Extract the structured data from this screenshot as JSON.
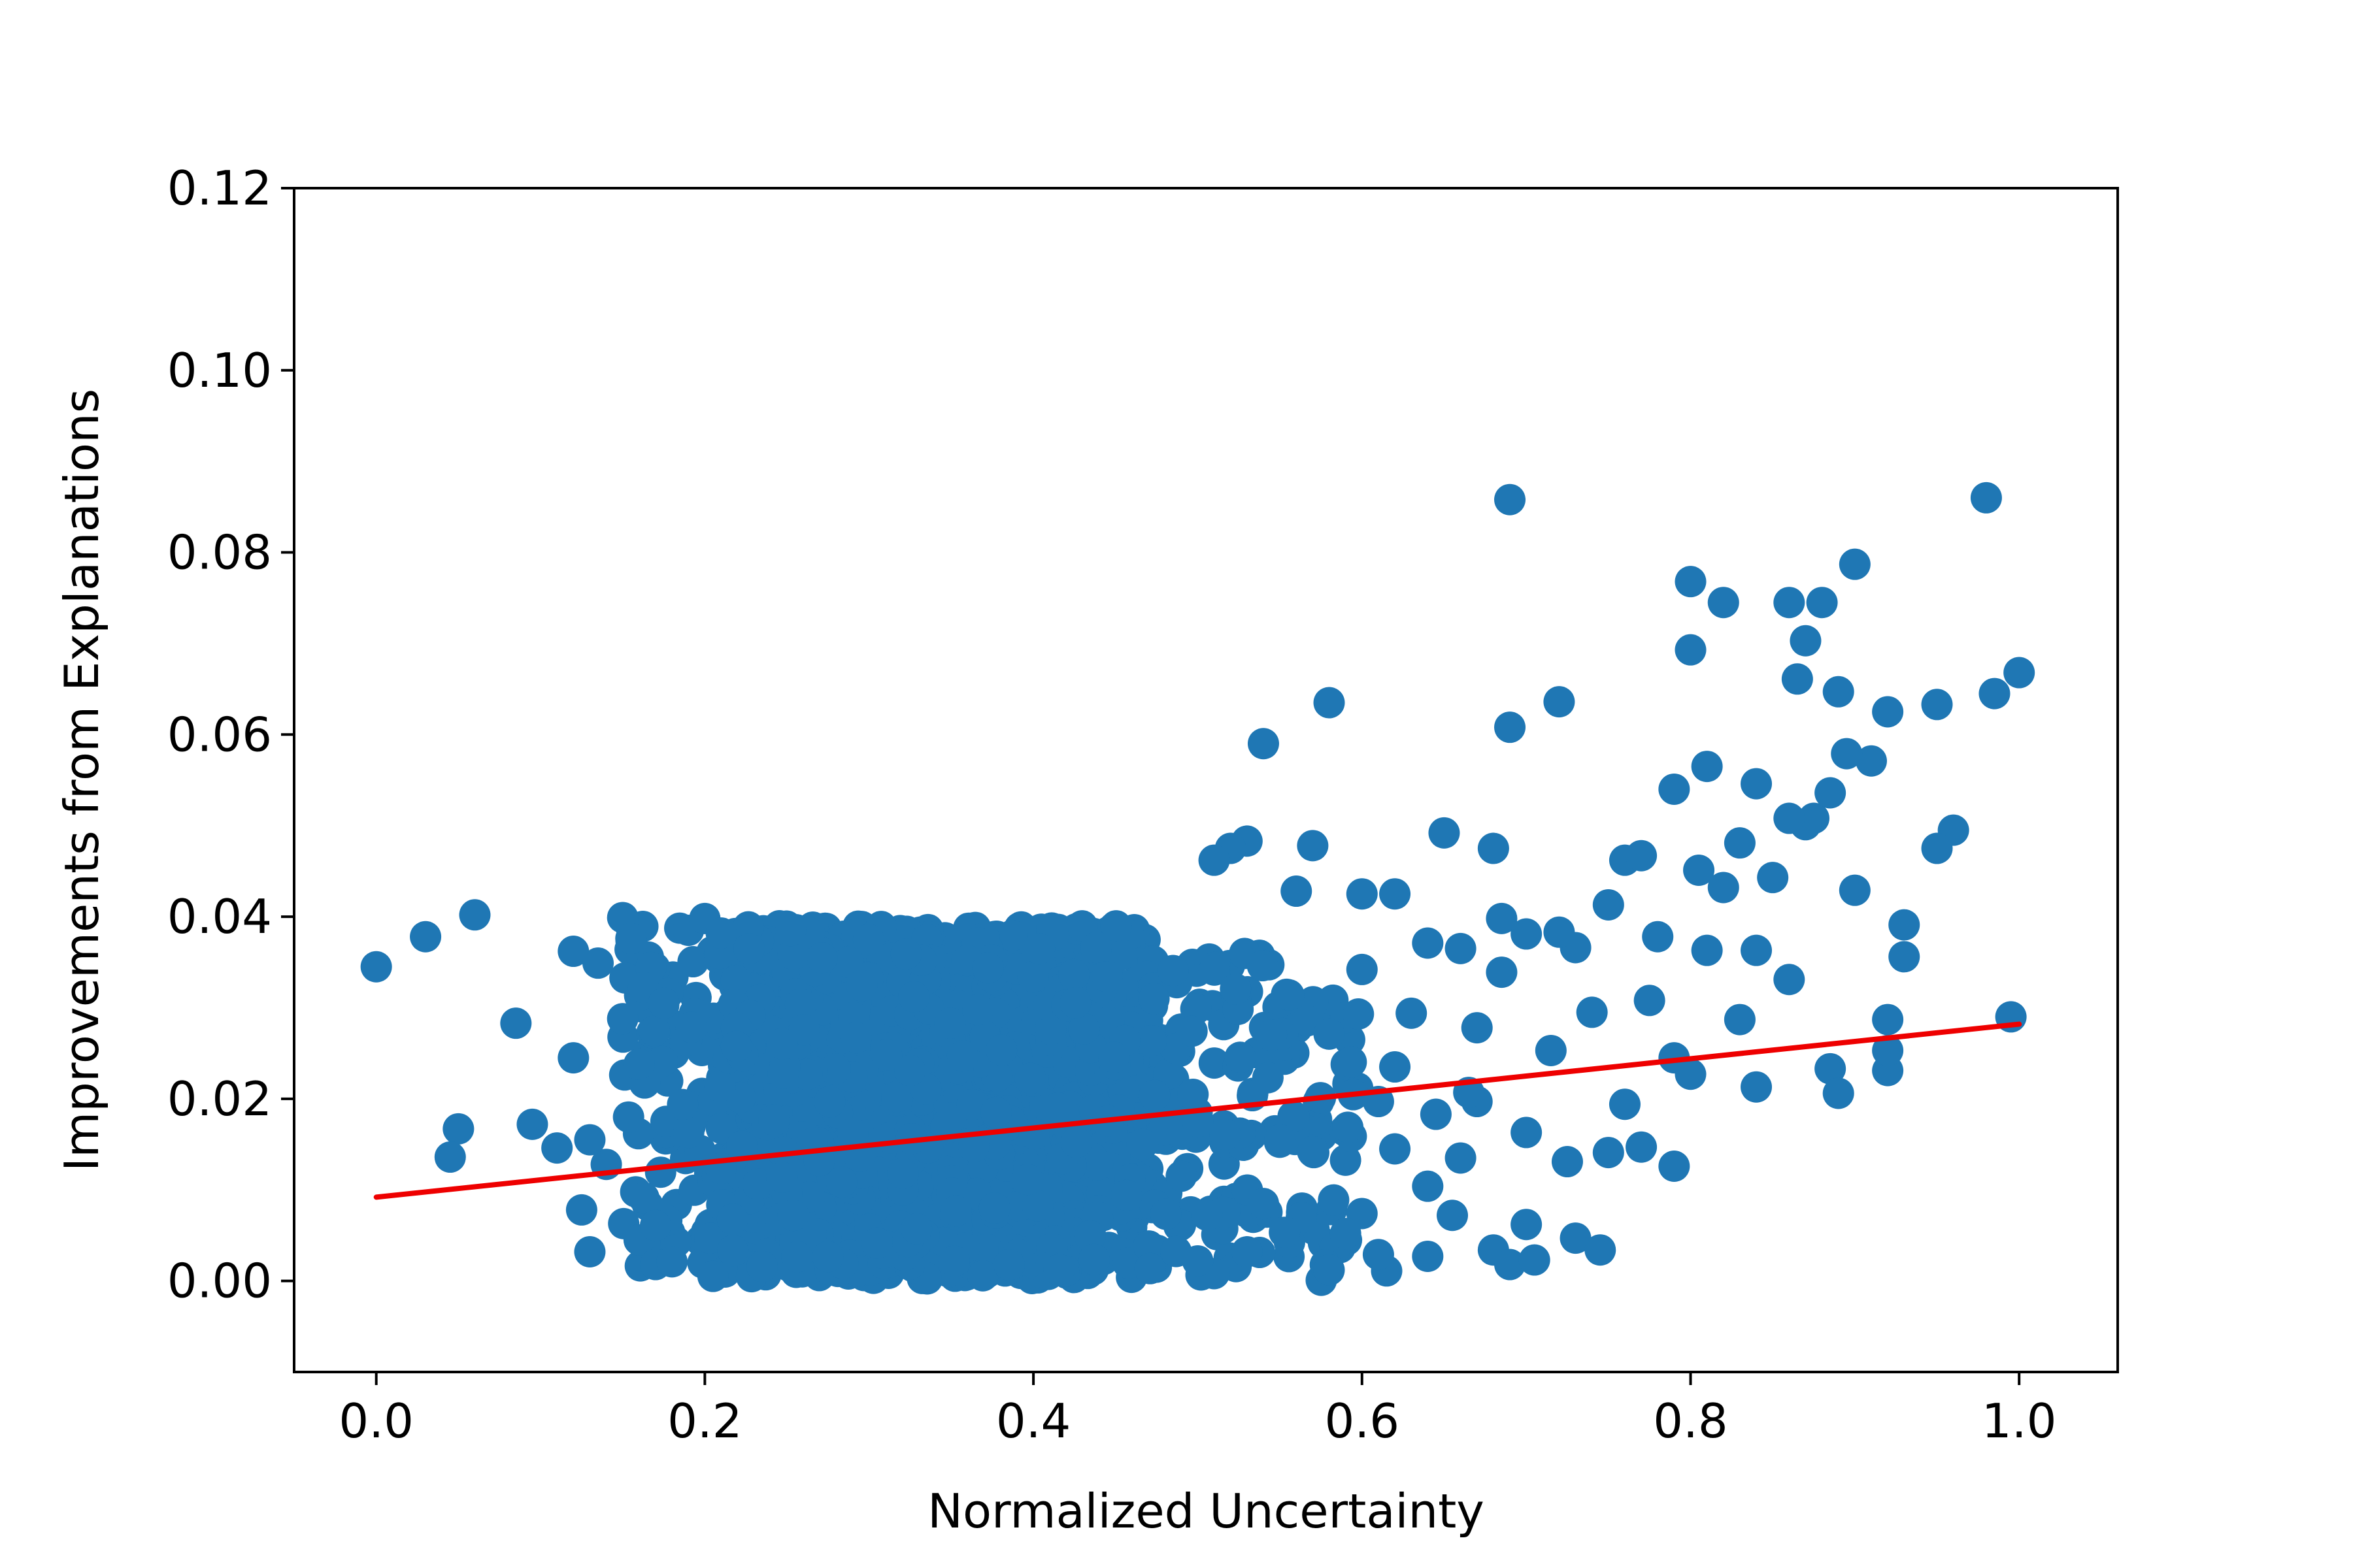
{
  "chart_data": {
    "type": "scatter",
    "xlabel": "Normalized Uncertainty",
    "ylabel": "Improvements from Explanations",
    "xlim": [
      -0.05,
      1.06
    ],
    "ylim": [
      -0.01,
      0.12
    ],
    "xticks": [
      0.0,
      0.2,
      0.4,
      0.6,
      0.8,
      1.0
    ],
    "xtick_labels": [
      "0.0",
      "0.2",
      "0.4",
      "0.6",
      "0.8",
      "1.0"
    ],
    "yticks": [
      0.0,
      0.02,
      0.04,
      0.06,
      0.08,
      0.1,
      0.12
    ],
    "ytick_labels": [
      "0.00",
      "0.02",
      "0.04",
      "0.06",
      "0.08",
      "0.10",
      "0.12"
    ],
    "grid": false,
    "colors": {
      "points": "#1f77b4",
      "trend": "#ee0000",
      "axes": "#000000"
    },
    "series": [
      {
        "type": "scatter",
        "x": [
          0.0,
          0.03,
          0.06,
          0.085,
          0.095,
          0.11,
          0.12,
          0.12,
          0.125,
          0.13,
          0.135,
          0.14,
          0.15,
          0.155,
          0.16,
          0.17,
          0.175,
          0.18,
          0.19,
          0.2,
          0.205,
          0.21,
          0.05,
          0.045,
          0.13,
          0.15,
          0.16,
          0.17,
          0.58,
          0.57,
          0.54,
          0.53,
          0.52,
          0.51,
          0.56,
          0.6,
          0.62,
          0.64,
          0.65,
          0.66,
          0.67,
          0.68,
          0.685,
          0.69,
          0.7,
          0.72,
          0.73,
          0.74,
          0.75,
          0.76,
          0.77,
          0.78,
          0.79,
          0.8,
          0.81,
          0.82,
          0.83,
          0.84,
          0.85,
          0.86,
          0.87,
          0.88,
          0.89,
          0.9,
          0.91,
          0.92,
          0.93,
          0.95,
          0.96,
          0.98,
          0.985,
          1.0,
          0.995,
          0.69,
          0.72,
          0.8,
          0.82,
          0.865,
          0.875,
          0.87,
          0.895,
          0.86,
          0.885,
          0.92,
          0.95,
          0.93,
          0.805,
          0.81,
          0.79,
          0.84,
          0.83,
          0.76,
          0.775,
          0.75,
          0.725,
          0.715,
          0.7,
          0.68,
          0.67,
          0.66,
          0.64,
          0.63,
          0.62,
          0.615,
          0.6,
          0.59,
          0.58,
          0.57,
          0.55,
          0.54,
          0.53,
          0.51,
          0.5,
          0.49,
          0.61,
          0.64,
          0.655,
          0.69,
          0.705,
          0.73,
          0.745,
          0.62,
          0.61,
          0.645,
          0.665,
          0.58,
          0.6,
          0.7,
          0.685,
          0.9,
          0.92,
          0.92,
          0.885,
          0.89,
          0.84,
          0.86,
          0.79,
          0.8,
          0.77
        ],
        "y": [
          0.0345,
          0.0378,
          0.0402,
          0.0283,
          0.0172,
          0.0146,
          0.0362,
          0.0245,
          0.0078,
          0.0032,
          0.0349,
          0.0128,
          0.0399,
          0.0376,
          0.0045,
          0.0018,
          0.0305,
          0.0021,
          0.0385,
          0.0398,
          0.0005,
          0.0382,
          0.0167,
          0.0136,
          0.0155,
          0.0288,
          0.0238,
          0.0061,
          0.0635,
          0.0478,
          0.059,
          0.0483,
          0.0475,
          0.0462,
          0.0428,
          0.0425,
          0.0425,
          0.0371,
          0.0492,
          0.0365,
          0.0278,
          0.0475,
          0.0398,
          0.0858,
          0.0381,
          0.0636,
          0.0366,
          0.0295,
          0.0413,
          0.0462,
          0.0467,
          0.0378,
          0.054,
          0.0768,
          0.0565,
          0.0745,
          0.0481,
          0.0546,
          0.0443,
          0.0745,
          0.0703,
          0.0745,
          0.0647,
          0.0787,
          0.0571,
          0.0625,
          0.0391,
          0.0633,
          0.0495,
          0.086,
          0.0645,
          0.0668,
          0.029,
          0.0608,
          0.0383,
          0.0693,
          0.0432,
          0.0661,
          0.0508,
          0.0501,
          0.0579,
          0.0508,
          0.0536,
          0.0287,
          0.0475,
          0.0356,
          0.0451,
          0.0363,
          0.0126,
          0.0213,
          0.0287,
          0.0194,
          0.0308,
          0.0141,
          0.0131,
          0.0253,
          0.0163,
          0.0034,
          0.0197,
          0.0135,
          0.0027,
          0.0294,
          0.0145,
          0.0011,
          0.0074,
          0.0052,
          0.0012,
          0.0142,
          0.0155,
          0.0085,
          0.0032,
          0.0008,
          0.0022,
          0.0115,
          0.0029,
          0.0104,
          0.0072,
          0.0018,
          0.0023,
          0.0047,
          0.0034,
          0.0235,
          0.0197,
          0.0183,
          0.0207,
          0.0271,
          0.0342,
          0.0062,
          0.0339,
          0.0429,
          0.0231,
          0.0253,
          0.0233,
          0.0206,
          0.0363,
          0.0331,
          0.0245,
          0.0227,
          0.0147
        ],
        "dense_cluster": {
          "x_range": [
            0.15,
            0.6
          ],
          "y_range": [
            0.0,
            0.04
          ],
          "note": ""
        }
      },
      {
        "type": "line",
        "x": [
          0.0,
          1.0
        ],
        "y": [
          0.0092,
          0.0282
        ]
      }
    ]
  }
}
